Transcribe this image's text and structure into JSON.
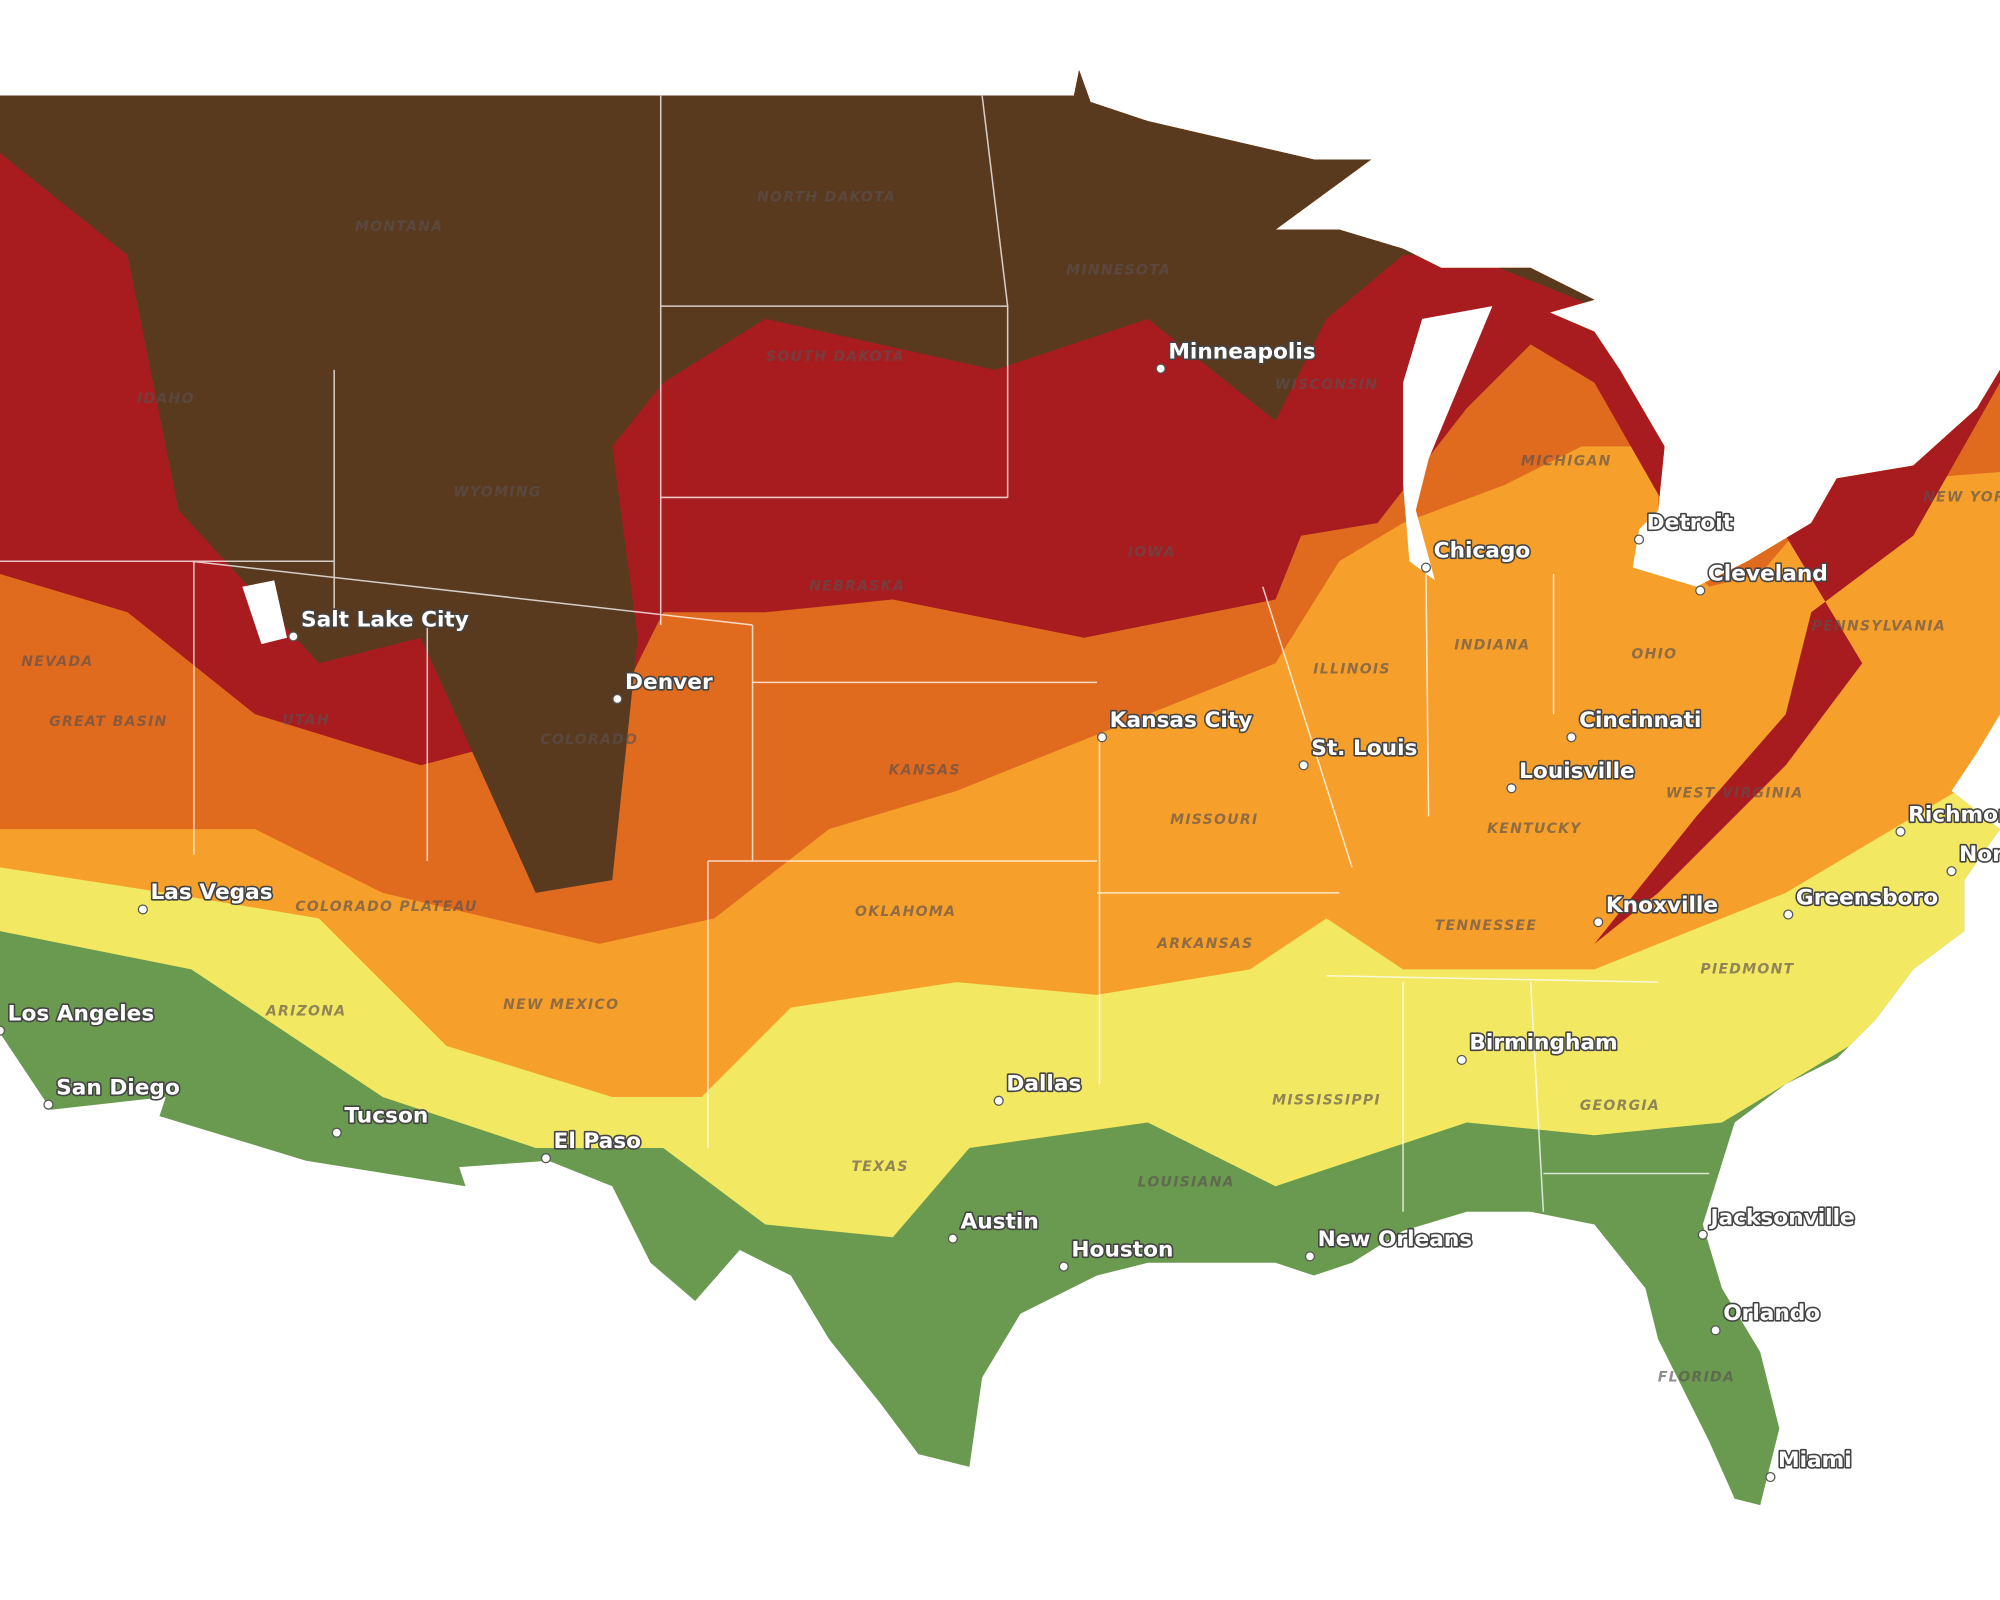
{
  "cities": [
    {
      "label": "Minneapolis"
    },
    {
      "label": "Chicago"
    },
    {
      "label": "Detroit"
    },
    {
      "label": "Cleveland"
    },
    {
      "label": "Salt Lake City"
    },
    {
      "label": "Denver"
    },
    {
      "label": "Kansas City"
    },
    {
      "label": "St. Louis"
    },
    {
      "label": "Cincinnati"
    },
    {
      "label": "Louisville"
    },
    {
      "label": "Richmond"
    },
    {
      "label": "Norfolk"
    },
    {
      "label": "Las Vegas"
    },
    {
      "label": "Knoxville"
    },
    {
      "label": "Greensboro"
    },
    {
      "label": "Los Angeles"
    },
    {
      "label": "San Diego"
    },
    {
      "label": "Tucson"
    },
    {
      "label": "El Paso"
    },
    {
      "label": "Dallas"
    },
    {
      "label": "Birmingham"
    },
    {
      "label": "Austin"
    },
    {
      "label": "Houston"
    },
    {
      "label": "New Orleans"
    },
    {
      "label": "Jacksonville"
    },
    {
      "label": "Orlando"
    },
    {
      "label": "Miami"
    }
  ],
  "regions": [
    {
      "label": "MONTANA"
    },
    {
      "label": "NORTH DAKOTA"
    },
    {
      "label": "MINNESOTA"
    },
    {
      "label": "SOUTH DAKOTA"
    },
    {
      "label": "WISCONSIN"
    },
    {
      "label": "IDAHO"
    },
    {
      "label": "WYOMING"
    },
    {
      "label": "MICHIGAN"
    },
    {
      "label": "IOWA"
    },
    {
      "label": "NEBRASKA"
    },
    {
      "label": "NEVADA"
    },
    {
      "label": "UTAH"
    },
    {
      "label": "GREAT BASIN"
    },
    {
      "label": "COLORADO"
    },
    {
      "label": "KANSAS"
    },
    {
      "label": "ILLINOIS"
    },
    {
      "label": "INDIANA"
    },
    {
      "label": "OHIO"
    },
    {
      "label": "PENNSYLVANIA"
    },
    {
      "label": "NEW YORK"
    },
    {
      "label": "WEST VIRGINIA"
    },
    {
      "label": "KENTUCKY"
    },
    {
      "label": "MISSOURI"
    },
    {
      "label": "COLORADO PLATEAU"
    },
    {
      "label": "OKLAHOMA"
    },
    {
      "label": "TENNESSEE"
    },
    {
      "label": "ARKANSAS"
    },
    {
      "label": "ARIZONA"
    },
    {
      "label": "NEW MEXICO"
    },
    {
      "label": "PIEDMONT"
    },
    {
      "label": "MISSISSIPPI"
    },
    {
      "label": "GEORGIA"
    },
    {
      "label": "TEXAS"
    },
    {
      "label": "LOUISIANA"
    },
    {
      "label": "FLORIDA"
    }
  ]
}
